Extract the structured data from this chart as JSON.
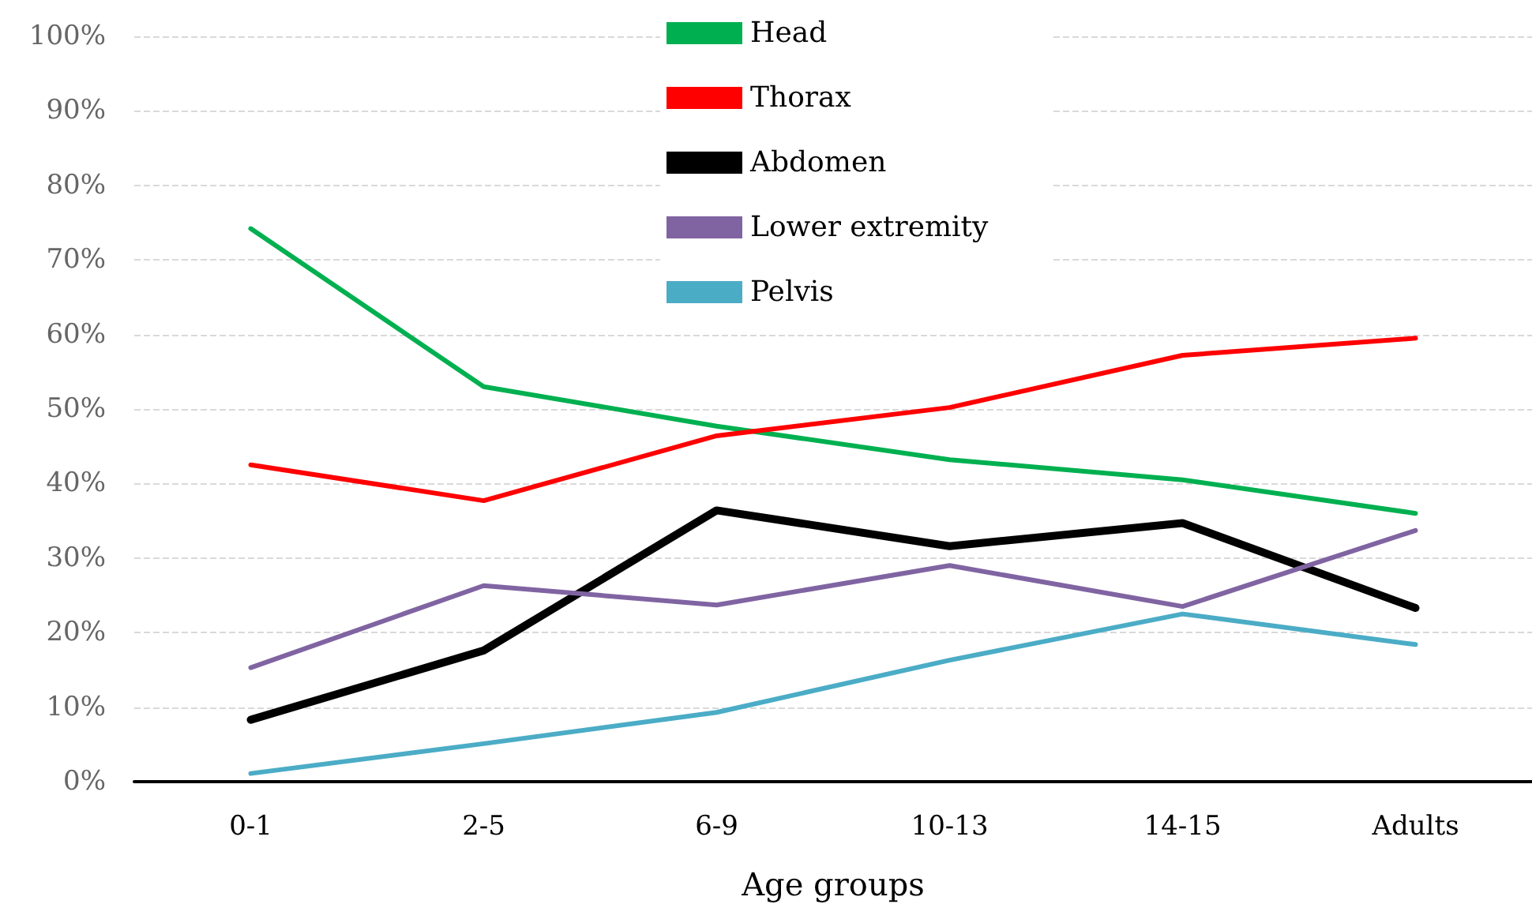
{
  "chart_data": {
    "type": "line",
    "xlabel": "Age groups",
    "categories": [
      "0-1",
      "2-5",
      "6-9",
      "10-13",
      "14-15",
      "Adults"
    ],
    "series": [
      {
        "name": "Head",
        "color": "#00b050",
        "values": [
          74.2,
          53,
          47.7,
          43.2,
          40.5,
          36
        ]
      },
      {
        "name": "Thorax",
        "color": "#ff0000",
        "values": [
          42.5,
          37.7,
          46.4,
          50.2,
          57.2,
          59.5
        ]
      },
      {
        "name": "Abdomen",
        "color": "#000000",
        "values": [
          8.3,
          17.6,
          36.4,
          31.6,
          34.7,
          23.3
        ]
      },
      {
        "name": "Lower extremity",
        "color": "#8064a2",
        "values": [
          15.3,
          26.3,
          23.7,
          29,
          23.5,
          33.7
        ]
      },
      {
        "name": "Pelvis",
        "color": "#4bacc6",
        "values": [
          1.1,
          5.1,
          9.3,
          16.3,
          22.5,
          18.4
        ]
      }
    ],
    "ylim": [
      0,
      100
    ],
    "yticks": [
      {
        "value": 0,
        "label": "0%"
      },
      {
        "value": 10,
        "label": "10%"
      },
      {
        "value": 20,
        "label": "20%"
      },
      {
        "value": 30,
        "label": "30%"
      },
      {
        "value": 40,
        "label": "40%"
      },
      {
        "value": 50,
        "label": "50%"
      },
      {
        "value": 60,
        "label": "60%"
      },
      {
        "value": 70,
        "label": "70%"
      },
      {
        "value": 80,
        "label": "80%"
      },
      {
        "value": 90,
        "label": "90%"
      },
      {
        "value": 100,
        "label": "100%"
      }
    ],
    "grid": "y",
    "legend": "top",
    "marker": "none",
    "line_style": "solid"
  }
}
